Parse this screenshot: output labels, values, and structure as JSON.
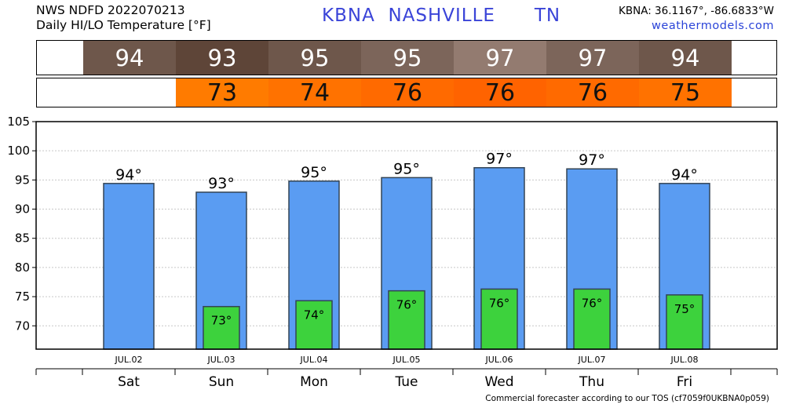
{
  "header": {
    "line1": "NWS NDFD 2022070213",
    "line2": "Daily HI/LO Temperature [°F]",
    "station": "KBNA",
    "city": "NASHVILLE",
    "state": "TN",
    "coords": "KBNA: 36.1167°, -86.6833°W",
    "site": "weathermodels.com"
  },
  "strips": {
    "hi": {
      "values": [
        "94",
        "93",
        "95",
        "95",
        "97",
        "97",
        "94"
      ],
      "colors": [
        "#6e574b",
        "#5e4538",
        "#6e574b",
        "#7c655a",
        "#937b70",
        "#7c655a",
        "#6e574b"
      ]
    },
    "lo": {
      "values": [
        "",
        "73",
        "74",
        "76",
        "76",
        "76",
        "75"
      ],
      "colors": [
        "#ffffff",
        "#ff7b00",
        "#ff7200",
        "#ff6a00",
        "#ff6300",
        "#ff6a00",
        "#ff7200"
      ]
    }
  },
  "colors": {
    "hi_bar": "#5a9cf2",
    "lo_bar": "#3dd23d",
    "bar_edge": "#334455",
    "grid": "#c8c8c8"
  },
  "chart_data": {
    "type": "bar",
    "categories": [
      "JUL.02",
      "JUL.03",
      "JUL.04",
      "JUL.05",
      "JUL.06",
      "JUL.07",
      "JUL.08"
    ],
    "days": [
      "Sat",
      "Sun",
      "Mon",
      "Tue",
      "Wed",
      "Thu",
      "Fri"
    ],
    "series": [
      {
        "values": [
          94.4,
          92.9,
          94.8,
          95.4,
          97.1,
          96.9,
          94.4
        ],
        "labels": [
          "94°",
          "93°",
          "95°",
          "95°",
          "97°",
          "97°",
          "94°"
        ]
      },
      {
        "values": [
          null,
          73.3,
          74.3,
          76.0,
          76.3,
          76.3,
          75.3
        ],
        "labels": [
          "",
          "73°",
          "74°",
          "76°",
          "76°",
          "76°",
          "75°"
        ]
      }
    ],
    "ylim": [
      66,
      105
    ],
    "yticks": [
      70,
      75,
      80,
      85,
      90,
      95,
      100,
      105
    ],
    "grid": true
  },
  "footer": "Commercial forecaster according to our TOS (cf7059f0UKBNA0p059)"
}
